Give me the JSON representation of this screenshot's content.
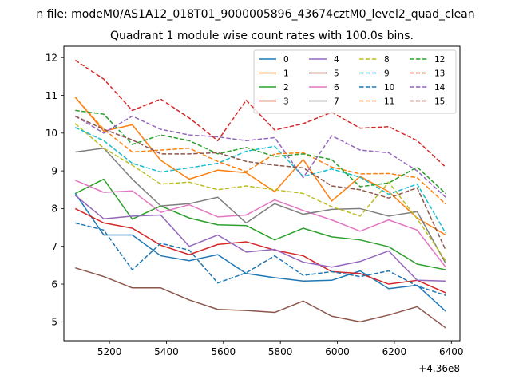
{
  "figure": {
    "suptitle": "n file: modeM0/AS1A12_018T01_9000005896_43674cztM0_level2_quad_clean",
    "title": "Quadrant 1 module wise count rates with 100.0s bins."
  },
  "chart_data": {
    "type": "line",
    "title": "Quadrant 1 module wise count rates with 100.0s bins.",
    "xlabel": "",
    "ylabel": "",
    "x_offset_label": "+4.36e8",
    "xlim": [
      5040,
      6430
    ],
    "ylim": [
      4.5,
      12.3
    ],
    "xticks": [
      5200,
      5400,
      5600,
      5800,
      6000,
      6200,
      6400
    ],
    "yticks": [
      5,
      6,
      7,
      8,
      9,
      10,
      11,
      12
    ],
    "grid": false,
    "legend": {
      "placement": "top-right",
      "columns": 4
    },
    "x": [
      5080,
      5180,
      5280,
      5380,
      5480,
      5580,
      5680,
      5780,
      5880,
      5980,
      6080,
      6180,
      6280,
      6380
    ],
    "series": [
      {
        "name": "0",
        "color": "#1f77b4",
        "dash": false,
        "values": [
          8.4,
          7.3,
          7.3,
          6.75,
          6.62,
          6.78,
          6.28,
          6.17,
          6.08,
          6.1,
          6.35,
          5.88,
          5.97,
          5.28
        ]
      },
      {
        "name": "1",
        "color": "#ff7f0e",
        "dash": false,
        "values": [
          10.95,
          10.05,
          10.22,
          9.28,
          8.78,
          9.02,
          8.95,
          8.45,
          9.3,
          8.2,
          8.85,
          8.45,
          7.75,
          7.3
        ]
      },
      {
        "name": "2",
        "color": "#2ca02c",
        "dash": false,
        "values": [
          8.4,
          8.78,
          7.72,
          8.07,
          7.75,
          7.57,
          7.55,
          7.17,
          7.48,
          7.25,
          7.17,
          6.99,
          6.53,
          6.38
        ]
      },
      {
        "name": "3",
        "color": "#d62728",
        "dash": false,
        "values": [
          8.0,
          7.62,
          7.48,
          7.03,
          6.78,
          7.05,
          7.12,
          6.9,
          6.75,
          6.33,
          6.28,
          6.0,
          6.1,
          5.77
        ]
      },
      {
        "name": "4",
        "color": "#9467bd",
        "dash": false,
        "values": [
          8.35,
          7.73,
          7.8,
          7.83,
          7.0,
          7.3,
          6.85,
          6.92,
          6.58,
          6.45,
          6.6,
          6.88,
          6.1,
          6.08
        ]
      },
      {
        "name": "5",
        "color": "#8c564b",
        "dash": false,
        "values": [
          6.43,
          6.2,
          5.9,
          5.9,
          5.58,
          5.33,
          5.3,
          5.25,
          5.55,
          5.15,
          5.0,
          5.18,
          5.4,
          4.84
        ]
      },
      {
        "name": "6",
        "color": "#e377c2",
        "dash": false,
        "values": [
          8.75,
          8.43,
          8.47,
          7.9,
          8.1,
          7.78,
          7.83,
          8.23,
          7.95,
          7.7,
          7.4,
          7.7,
          7.43,
          6.45
        ]
      },
      {
        "name": "7",
        "color": "#7f7f7f",
        "dash": false,
        "values": [
          9.5,
          9.6,
          8.78,
          8.07,
          8.13,
          8.3,
          7.62,
          8.13,
          7.85,
          7.98,
          8.0,
          7.8,
          7.92,
          6.55
        ]
      },
      {
        "name": "8",
        "color": "#bcbd22",
        "dash": true,
        "values": [
          10.25,
          9.6,
          9.15,
          8.65,
          8.7,
          8.5,
          8.6,
          8.5,
          8.4,
          8.05,
          7.8,
          8.7,
          7.73,
          6.62
        ]
      },
      {
        "name": "9",
        "color": "#17becf",
        "dash": true,
        "values": [
          10.15,
          9.8,
          9.2,
          8.97,
          9.08,
          9.2,
          9.52,
          9.65,
          8.85,
          9.05,
          8.83,
          8.38,
          8.65,
          7.35
        ]
      },
      {
        "name": "10",
        "color": "#1f77b4",
        "dash": true,
        "values": [
          7.62,
          7.43,
          6.38,
          7.08,
          6.9,
          6.03,
          6.3,
          6.75,
          6.23,
          6.33,
          6.2,
          6.35,
          5.95,
          5.7
        ]
      },
      {
        "name": "11",
        "color": "#ff7f0e",
        "dash": true,
        "values": [
          10.95,
          10.1,
          9.5,
          9.55,
          9.6,
          9.25,
          8.98,
          9.45,
          9.48,
          9.1,
          8.92,
          8.93,
          8.82,
          8.12
        ]
      },
      {
        "name": "12",
        "color": "#2ca02c",
        "dash": true,
        "values": [
          10.6,
          10.5,
          9.7,
          9.95,
          9.8,
          9.45,
          9.62,
          9.38,
          9.45,
          9.3,
          8.58,
          8.68,
          9.1,
          8.4
        ]
      },
      {
        "name": "13",
        "color": "#d62728",
        "dash": true,
        "values": [
          11.93,
          11.43,
          10.6,
          10.9,
          10.4,
          9.8,
          10.87,
          10.08,
          10.25,
          10.55,
          10.13,
          10.17,
          9.8,
          9.1
        ]
      },
      {
        "name": "14",
        "color": "#9467bd",
        "dash": true,
        "values": [
          10.45,
          10.0,
          10.45,
          10.1,
          9.95,
          9.9,
          9.8,
          9.88,
          8.82,
          9.93,
          9.55,
          9.48,
          9.0,
          8.3
        ]
      },
      {
        "name": "15",
        "color": "#8c564b",
        "dash": true,
        "values": [
          10.45,
          10.1,
          9.82,
          9.45,
          9.45,
          9.48,
          9.25,
          9.15,
          9.08,
          8.6,
          8.5,
          8.28,
          8.55,
          6.9
        ]
      }
    ]
  }
}
